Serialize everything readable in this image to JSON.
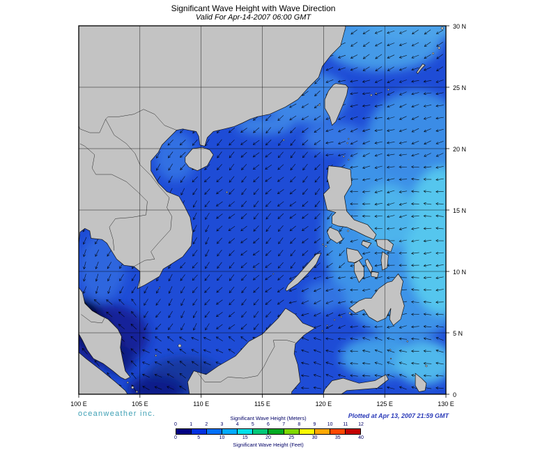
{
  "header": {
    "title": "Significant Wave Height with Wave Direction",
    "subtitle": "Valid For Apr-14-2007 06:00 GMT"
  },
  "footer": {
    "credit": "oceanweather inc.",
    "plotted": "Plotted at Apr 13, 2007 21:59 GMT"
  },
  "axes": {
    "lon": [
      "100 E",
      "105 E",
      "110 E",
      "115 E",
      "120 E",
      "125 E",
      "130 E"
    ],
    "lat": [
      "30 N",
      "25 N",
      "20 N",
      "15 N",
      "10 N",
      "5 N",
      "0"
    ]
  },
  "legend": {
    "meters_label": "Significant Wave Height (Meters)",
    "feet_label": "Significant Wave Height (Feet)",
    "meters_ticks": [
      "0",
      "1",
      "2",
      "3",
      "4",
      "5",
      "6",
      "7",
      "8",
      "9",
      "10",
      "11",
      "12"
    ],
    "feet_ticks": [
      "0",
      "5",
      "10",
      "15",
      "20",
      "25",
      "30",
      "35",
      "40"
    ],
    "colors": [
      "#000082",
      "#0030e0",
      "#0070f8",
      "#00aaff",
      "#00e0e8",
      "#00c878",
      "#00aa22",
      "#7fd800",
      "#f8f800",
      "#ffa800",
      "#ff4800",
      "#c40000"
    ]
  },
  "map_colors": {
    "land": "#c3c3c3",
    "coastline": "#141414",
    "border_line": "#222222",
    "ocean": "#1e4cd6",
    "grid": "#000000",
    "arrows": "#000000",
    "shades": {
      "pacific": "#3d93e8",
      "pacific_soft": "#3a8ce6",
      "cyan_band": "#55c6ee",
      "cyan_patch": "#4db4ec",
      "ecs": "#459ae8",
      "top_band": "#4da4ea",
      "coast_china": "#3c86e6",
      "china_coast2": "#3a80e4",
      "tonkin": "#336fe2",
      "got": "#2e66de",
      "luzon": "#3577e4",
      "navy_wash": "#12249a",
      "dark1": "#0c1c85",
      "dark2": "#081263",
      "dark3": "#050b4c",
      "dark4": "#03062e",
      "karimata": "#17379f",
      "karimata2": "#101f8a",
      "celebes": "#3f9ce8",
      "celebes2": "#4fb8ec",
      "sulu": "#3173e2"
    }
  }
}
